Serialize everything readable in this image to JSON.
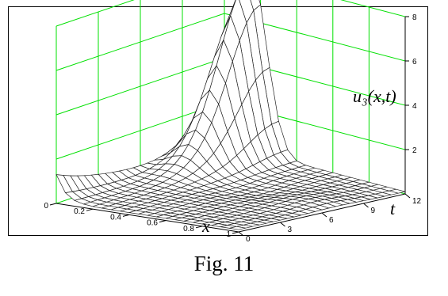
{
  "figure": {
    "caption": "Fig. 11"
  },
  "chart_data": {
    "type": "surface",
    "title": "",
    "zlabel": "u₃(x,t)",
    "xlabel": "x",
    "ylabel": "t",
    "x_ticks": [
      "0",
      "0.2",
      "0.4",
      "0.6",
      "0.8",
      "1"
    ],
    "t_ticks": [
      "0",
      "3",
      "6",
      "9",
      "12"
    ],
    "z_ticks": [
      "2",
      "4",
      "6",
      "8"
    ],
    "xlim": [
      0,
      1
    ],
    "tlim": [
      0,
      12
    ],
    "zlim": [
      0,
      8
    ],
    "grid": true,
    "grid_color": "#00e000",
    "mesh_color": "#222222",
    "surface_fill": "#ffffff",
    "description_of_surface": {
      "peak_location": {
        "x": 0.15,
        "t": 12
      },
      "peak_value": 8,
      "base_value_near_x0": 1.2,
      "base_value_elsewhere": 0.1
    }
  }
}
